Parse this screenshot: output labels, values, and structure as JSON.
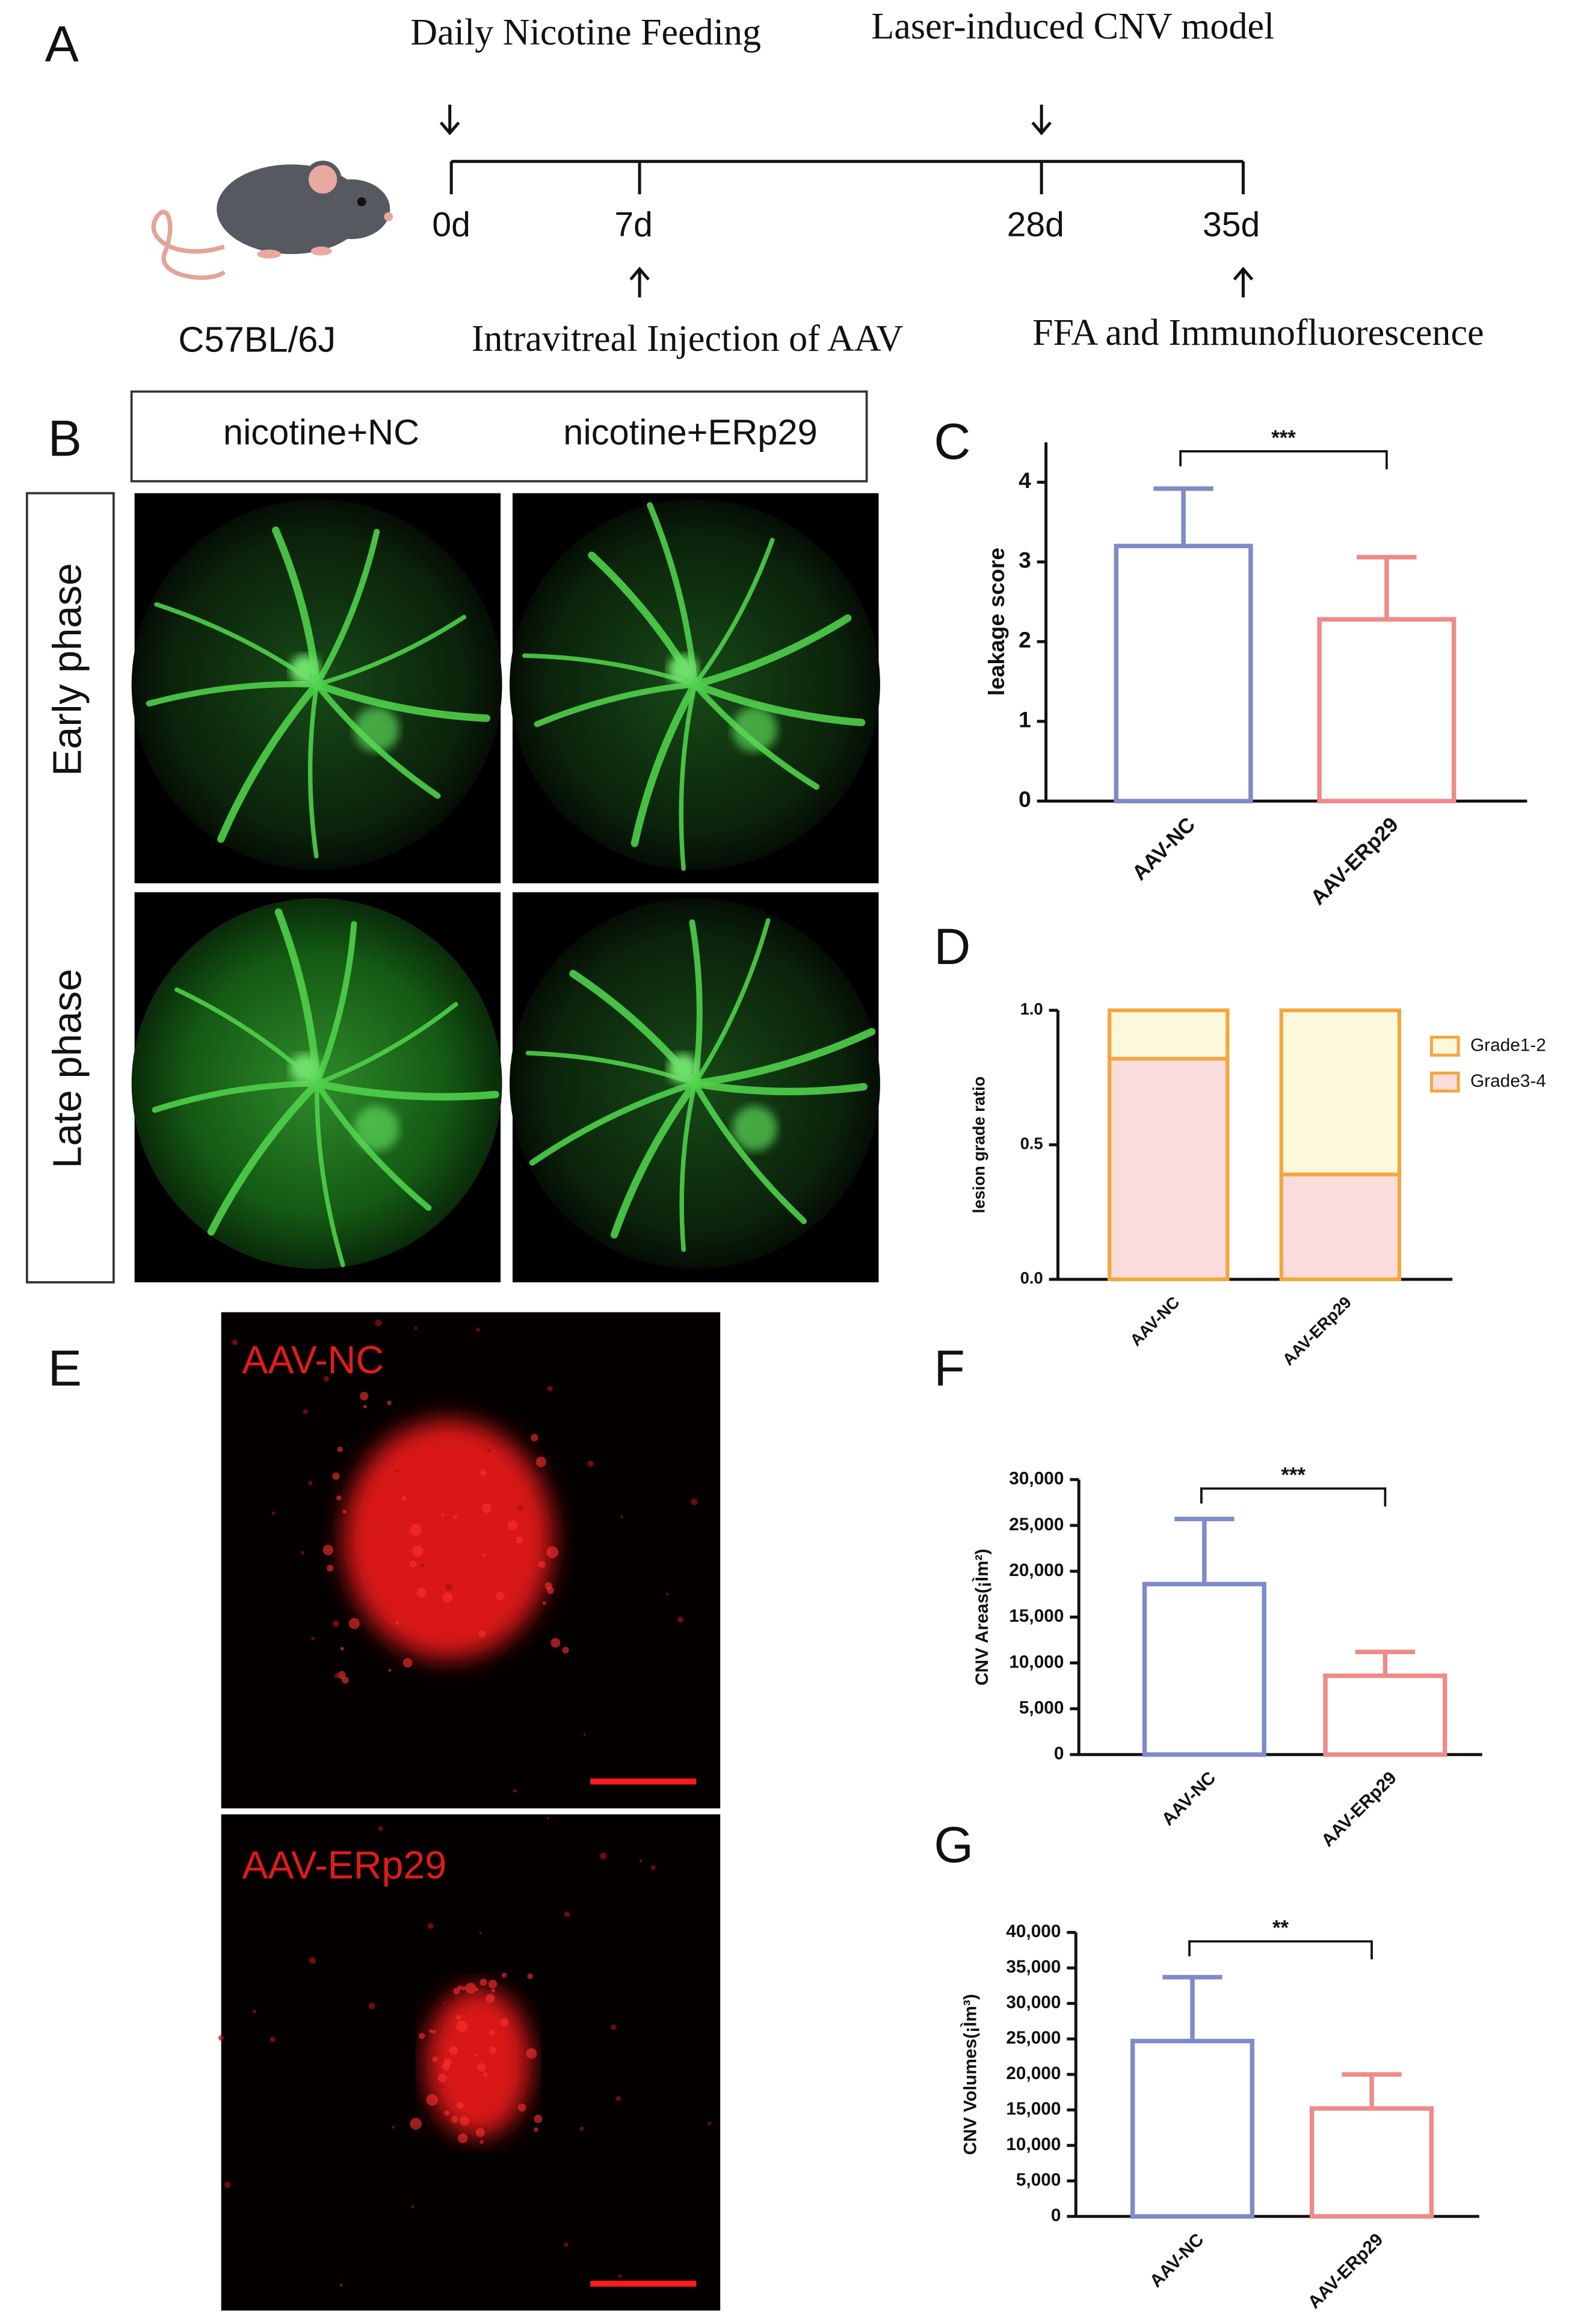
{
  "panel_labels": [
    "A",
    "B",
    "C",
    "D",
    "E",
    "F",
    "G"
  ],
  "timeline": {
    "top_labels": [
      "Daily Nicotine Feeding",
      "Laser-induced CNV model"
    ],
    "days": [
      "0d",
      "7d",
      "28d",
      "35d"
    ],
    "bottom_labels": [
      "Intravitreal Injection of AAV",
      "FFA and Immunofluorescence"
    ],
    "strain": "C57BL/6J"
  },
  "fundus": {
    "columns": [
      "nicotine+NC",
      "nicotine+ERp29"
    ],
    "rows": [
      "Early phase",
      "Late phase"
    ]
  },
  "confocal": {
    "labels": [
      "AAV-NC",
      "AAV-ERp29"
    ]
  },
  "chart_data": [
    {
      "type": "bar",
      "categories": [
        "AAV-NC",
        "AAV-ERp29"
      ],
      "values": [
        3.2,
        2.28
      ],
      "errors": [
        0.72,
        0.78
      ],
      "colors": [
        "#7f8bc6",
        "#ef8a8a"
      ],
      "ylim": [
        0,
        4.5
      ],
      "yticks": [
        0,
        1,
        2,
        3,
        4
      ],
      "ylabel": "leakage score",
      "significance": "***"
    },
    {
      "type": "stacked_bar",
      "categories": [
        "AAV-NC",
        "AAV-ERp29"
      ],
      "series": [
        {
          "name": "Grade1-2",
          "color": "#fbf8dc",
          "values": [
            0.18,
            0.61
          ]
        },
        {
          "name": "Grade3-4",
          "color": "#fbdcdc",
          "values": [
            0.82,
            0.39
          ]
        }
      ],
      "edgecolor": "#f4a63e",
      "ylim": [
        0,
        1
      ],
      "yticks": [
        {
          "value": 0,
          "label": "0.0"
        },
        {
          "value": 0.5,
          "label": "0.5"
        },
        {
          "value": 1,
          "label": "1.0"
        }
      ],
      "ylabel": "lesion grade ratio"
    },
    {
      "type": "bar",
      "categories": [
        "AAV-NC",
        "AAV-ERp29"
      ],
      "values": [
        18600,
        8600
      ],
      "errors": [
        7100,
        2600
      ],
      "colors": [
        "#7f8bc6",
        "#ef8a8a"
      ],
      "ylim": [
        0,
        30000
      ],
      "yticks": [
        0,
        {
          "value": 5000,
          "label": "5,000"
        },
        {
          "value": 10000,
          "label": "10,000"
        },
        {
          "value": 15000,
          "label": "15,000"
        },
        {
          "value": 20000,
          "label": "20,000"
        },
        {
          "value": 25000,
          "label": "25,000"
        },
        {
          "value": 30000,
          "label": "30,000"
        }
      ],
      "ylabel": "CNV Areas(¡Ìm²)",
      "significance": "***"
    },
    {
      "type": "bar",
      "categories": [
        "AAV-NC",
        "AAV-ERp29"
      ],
      "values": [
        24700,
        15200
      ],
      "errors": [
        9000,
        4800
      ],
      "colors": [
        "#7f8bc6",
        "#ef8a8a"
      ],
      "ylim": [
        0,
        40000
      ],
      "yticks": [
        0,
        {
          "value": 5000,
          "label": "5,000"
        },
        {
          "value": 10000,
          "label": "10,000"
        },
        {
          "value": 15000,
          "label": "15,000"
        },
        {
          "value": 20000,
          "label": "20,000"
        },
        {
          "value": 25000,
          "label": "25,000"
        },
        {
          "value": 30000,
          "label": "30,000"
        },
        {
          "value": 35000,
          "label": "35,000"
        },
        {
          "value": 40000,
          "label": "40,000"
        }
      ],
      "ylabel": "CNV Volumes(¡Ìm³)",
      "significance": "**"
    }
  ]
}
